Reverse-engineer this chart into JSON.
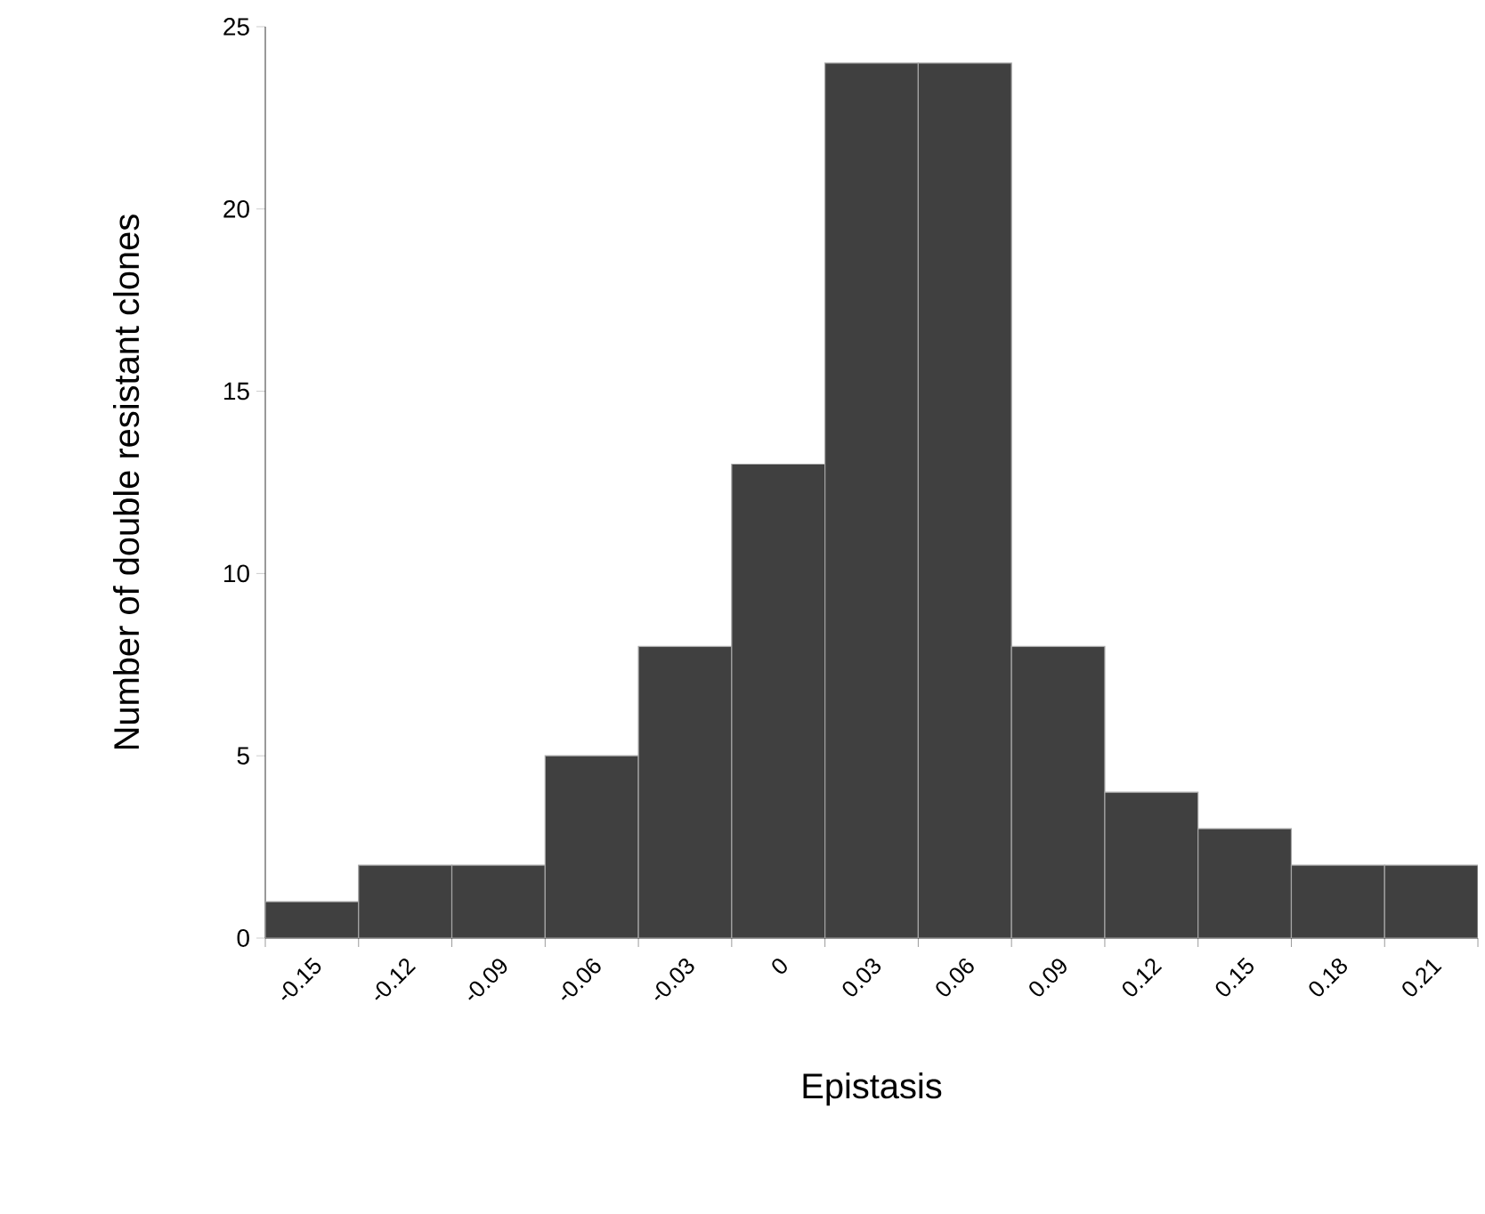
{
  "chart_data": {
    "type": "bar",
    "xlabel": "Epistasis",
    "ylabel": "Number of double resistant clones",
    "categories": [
      "-0.15",
      "-0.12",
      "-0.09",
      "-0.06",
      "-0.03",
      "0",
      "0.03",
      "0.06",
      "0.09",
      "0.12",
      "0.15",
      "0.18",
      "0.21"
    ],
    "values": [
      1,
      2,
      2,
      5,
      8,
      13,
      24,
      24,
      8,
      4,
      3,
      2,
      2
    ],
    "color": "#404040",
    "ylim": [
      0,
      25
    ],
    "yticks": [
      0,
      5,
      10,
      15,
      20,
      25
    ]
  }
}
